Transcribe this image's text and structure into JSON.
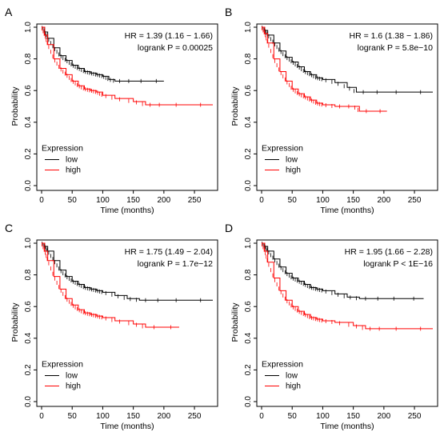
{
  "chart_data": [
    {
      "panel_label": "A",
      "type": "line",
      "xlabel": "Time (months)",
      "ylabel": "Probability",
      "xlim": [
        0,
        280
      ],
      "ylim": [
        0,
        1
      ],
      "x_ticks": [
        "0",
        "50",
        "100",
        "150",
        "200",
        "250"
      ],
      "y_ticks": [
        "0.0",
        "0.2",
        "0.4",
        "0.6",
        "0.8",
        "1.0"
      ],
      "hr_text": "HR = 1.39 (1.16 − 1.66)",
      "logrank_text": "logrank P = 0.00025",
      "legend_title": "Expression",
      "legend_position": "bottom-left",
      "grid": false,
      "series": [
        {
          "name": "low",
          "color": "#000000",
          "points": [
            [
              0,
              1
            ],
            [
              5,
              0.97
            ],
            [
              10,
              0.93
            ],
            [
              20,
              0.87
            ],
            [
              30,
              0.82
            ],
            [
              40,
              0.79
            ],
            [
              50,
              0.76
            ],
            [
              60,
              0.74
            ],
            [
              70,
              0.72
            ],
            [
              80,
              0.71
            ],
            [
              90,
              0.7
            ],
            [
              100,
              0.69
            ],
            [
              110,
              0.67
            ],
            [
              120,
              0.66
            ],
            [
              150,
              0.66
            ],
            [
              200,
              0.66
            ]
          ]
        },
        {
          "name": "high",
          "color": "#ff0000",
          "points": [
            [
              0,
              1
            ],
            [
              5,
              0.95
            ],
            [
              10,
              0.89
            ],
            [
              20,
              0.8
            ],
            [
              30,
              0.74
            ],
            [
              40,
              0.7
            ],
            [
              50,
              0.66
            ],
            [
              60,
              0.63
            ],
            [
              70,
              0.61
            ],
            [
              80,
              0.6
            ],
            [
              90,
              0.59
            ],
            [
              100,
              0.57
            ],
            [
              120,
              0.55
            ],
            [
              150,
              0.53
            ],
            [
              170,
              0.51
            ],
            [
              200,
              0.51
            ],
            [
              280,
              0.51
            ]
          ]
        }
      ]
    },
    {
      "panel_label": "B",
      "type": "line",
      "xlabel": "Time (months)",
      "ylabel": "Probability",
      "xlim": [
        0,
        280
      ],
      "ylim": [
        0,
        1
      ],
      "x_ticks": [
        "0",
        "50",
        "100",
        "150",
        "200",
        "250"
      ],
      "y_ticks": [
        "0.0",
        "0.2",
        "0.4",
        "0.6",
        "0.8",
        "1.0"
      ],
      "hr_text": "HR = 1.6 (1.38 − 1.86)",
      "logrank_text": "logrank P = 5.8e−10",
      "legend_title": "Expression",
      "legend_position": "bottom-left",
      "grid": false,
      "series": [
        {
          "name": "low",
          "color": "#000000",
          "points": [
            [
              0,
              1
            ],
            [
              5,
              0.98
            ],
            [
              10,
              0.95
            ],
            [
              20,
              0.9
            ],
            [
              30,
              0.85
            ],
            [
              40,
              0.81
            ],
            [
              50,
              0.78
            ],
            [
              60,
              0.75
            ],
            [
              70,
              0.72
            ],
            [
              80,
              0.7
            ],
            [
              90,
              0.68
            ],
            [
              100,
              0.67
            ],
            [
              120,
              0.65
            ],
            [
              140,
              0.62
            ],
            [
              155,
              0.59
            ],
            [
              200,
              0.59
            ],
            [
              280,
              0.59
            ]
          ]
        },
        {
          "name": "high",
          "color": "#ff0000",
          "points": [
            [
              0,
              1
            ],
            [
              5,
              0.96
            ],
            [
              10,
              0.9
            ],
            [
              20,
              0.8
            ],
            [
              30,
              0.72
            ],
            [
              40,
              0.66
            ],
            [
              50,
              0.61
            ],
            [
              60,
              0.58
            ],
            [
              70,
              0.56
            ],
            [
              80,
              0.54
            ],
            [
              90,
              0.52
            ],
            [
              100,
              0.51
            ],
            [
              120,
              0.5
            ],
            [
              150,
              0.5
            ],
            [
              160,
              0.47
            ],
            [
              205,
              0.47
            ]
          ]
        }
      ]
    },
    {
      "panel_label": "C",
      "type": "line",
      "xlabel": "Time (months)",
      "ylabel": "Probability",
      "xlim": [
        0,
        280
      ],
      "ylim": [
        0,
        1
      ],
      "x_ticks": [
        "0",
        "50",
        "100",
        "150",
        "200",
        "250"
      ],
      "y_ticks": [
        "0.0",
        "0.2",
        "0.4",
        "0.6",
        "0.8",
        "1.0"
      ],
      "hr_text": "HR = 1.75 (1.49 − 2.04)",
      "logrank_text": "logrank P = 1.7e−12",
      "legend_title": "Expression",
      "legend_position": "bottom-left",
      "grid": false,
      "series": [
        {
          "name": "low",
          "color": "#000000",
          "points": [
            [
              0,
              1
            ],
            [
              5,
              0.98
            ],
            [
              10,
              0.95
            ],
            [
              20,
              0.89
            ],
            [
              30,
              0.83
            ],
            [
              40,
              0.79
            ],
            [
              50,
              0.76
            ],
            [
              60,
              0.74
            ],
            [
              70,
              0.72
            ],
            [
              80,
              0.71
            ],
            [
              90,
              0.7
            ],
            [
              100,
              0.69
            ],
            [
              120,
              0.67
            ],
            [
              140,
              0.65
            ],
            [
              160,
              0.64
            ],
            [
              200,
              0.64
            ],
            [
              280,
              0.64
            ]
          ]
        },
        {
          "name": "high",
          "color": "#ff0000",
          "points": [
            [
              0,
              1
            ],
            [
              5,
              0.95
            ],
            [
              10,
              0.89
            ],
            [
              20,
              0.79
            ],
            [
              30,
              0.71
            ],
            [
              40,
              0.65
            ],
            [
              50,
              0.61
            ],
            [
              60,
              0.58
            ],
            [
              70,
              0.56
            ],
            [
              80,
              0.55
            ],
            [
              90,
              0.54
            ],
            [
              100,
              0.53
            ],
            [
              120,
              0.51
            ],
            [
              150,
              0.49
            ],
            [
              170,
              0.47
            ],
            [
              225,
              0.47
            ]
          ]
        }
      ]
    },
    {
      "panel_label": "D",
      "type": "line",
      "xlabel": "Time (months)",
      "ylabel": "Probability",
      "xlim": [
        0,
        280
      ],
      "ylim": [
        0,
        1
      ],
      "x_ticks": [
        "0",
        "50",
        "100",
        "150",
        "200",
        "250"
      ],
      "y_ticks": [
        "0.0",
        "0.2",
        "0.4",
        "0.6",
        "0.8",
        "1.0"
      ],
      "hr_text": "HR = 1.95 (1.66 − 2.28)",
      "logrank_text": "logrank P < 1E−16",
      "legend_title": "Expression",
      "legend_position": "bottom-left",
      "grid": false,
      "series": [
        {
          "name": "low",
          "color": "#000000",
          "points": [
            [
              0,
              1
            ],
            [
              5,
              0.98
            ],
            [
              10,
              0.95
            ],
            [
              20,
              0.9
            ],
            [
              30,
              0.85
            ],
            [
              40,
              0.81
            ],
            [
              50,
              0.78
            ],
            [
              60,
              0.76
            ],
            [
              70,
              0.74
            ],
            [
              80,
              0.72
            ],
            [
              90,
              0.71
            ],
            [
              100,
              0.7
            ],
            [
              120,
              0.68
            ],
            [
              140,
              0.66
            ],
            [
              160,
              0.65
            ],
            [
              200,
              0.65
            ],
            [
              265,
              0.65
            ]
          ]
        },
        {
          "name": "high",
          "color": "#ff0000",
          "points": [
            [
              0,
              1
            ],
            [
              5,
              0.95
            ],
            [
              10,
              0.88
            ],
            [
              20,
              0.78
            ],
            [
              30,
              0.7
            ],
            [
              40,
              0.64
            ],
            [
              50,
              0.6
            ],
            [
              60,
              0.57
            ],
            [
              70,
              0.55
            ],
            [
              80,
              0.53
            ],
            [
              90,
              0.52
            ],
            [
              100,
              0.51
            ],
            [
              120,
              0.5
            ],
            [
              150,
              0.48
            ],
            [
              170,
              0.46
            ],
            [
              200,
              0.46
            ],
            [
              280,
              0.46
            ]
          ]
        }
      ]
    }
  ]
}
